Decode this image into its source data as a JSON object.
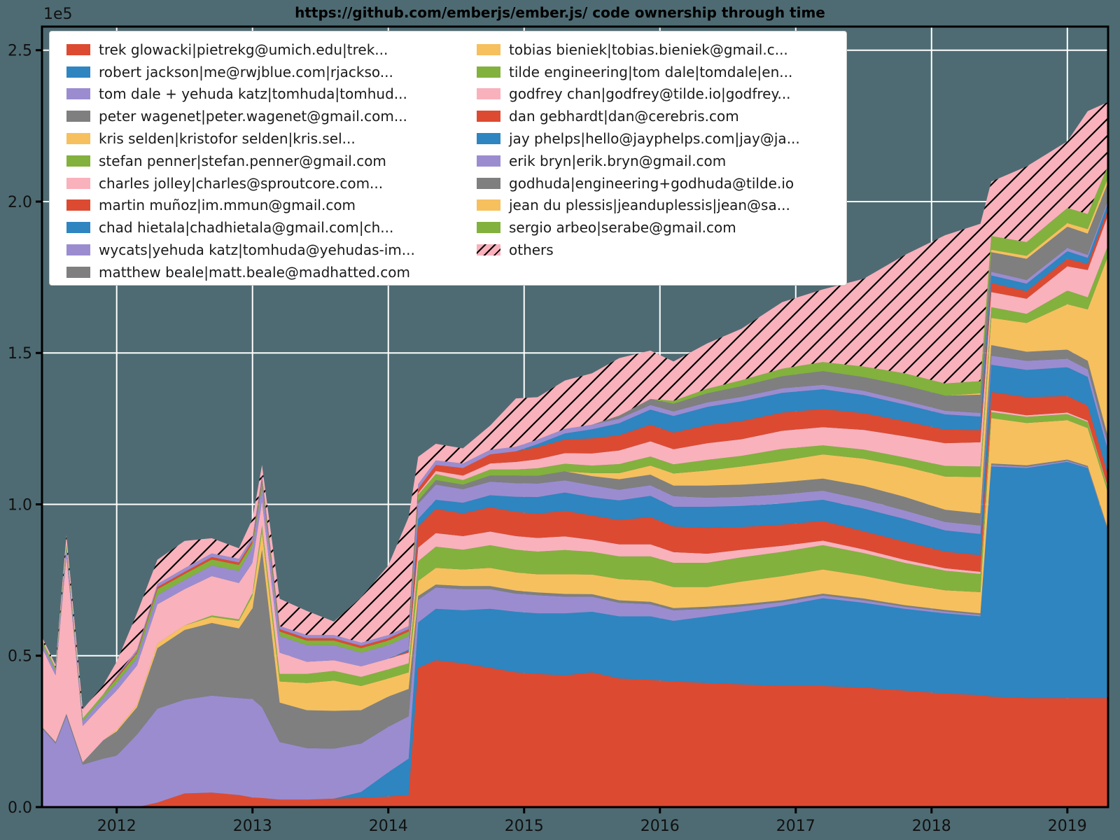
{
  "colors": {
    "figure_bg": "#4e6b73",
    "grid": "#ffffff",
    "spine": "#000000",
    "legend_bg": "#ffffff",
    "red": "#dd4a32",
    "blue": "#2e85c0",
    "purple": "#9b8cd0",
    "gray": "#7f7f7f",
    "orange": "#f6c05e",
    "green": "#83b13d",
    "pink": "#f9b1bc"
  },
  "chart_data": {
    "type": "area",
    "stacked": true,
    "title": "https://github.com/emberjs/ember.js/ code ownership through time",
    "y_offset_label": "1e5",
    "grid": true,
    "legend_position": "upper left",
    "xlim": [
      2011.45,
      2019.3
    ],
    "ylim": [
      0,
      257800
    ],
    "xticks": [
      "2012",
      "2013",
      "2014",
      "2015",
      "2016",
      "2017",
      "2018",
      "2019"
    ],
    "xtick_values": [
      2012,
      2013,
      2014,
      2015,
      2016,
      2017,
      2018,
      2019
    ],
    "yticks": [
      "0.0",
      "0.5",
      "1.0",
      "1.5",
      "2.0",
      "2.5"
    ],
    "ytick_values": [
      0,
      50000,
      100000,
      150000,
      200000,
      250000
    ],
    "x": [
      2011.45,
      2011.55,
      2011.63,
      2011.75,
      2011.9,
      2012.0,
      2012.15,
      2012.3,
      2012.5,
      2012.7,
      2012.9,
      2013.0,
      2013.07,
      2013.2,
      2013.4,
      2013.6,
      2013.8,
      2014.0,
      2014.15,
      2014.22,
      2014.35,
      2014.55,
      2014.75,
      2014.94,
      2015.1,
      2015.3,
      2015.5,
      2015.7,
      2015.93,
      2016.1,
      2016.35,
      2016.6,
      2016.9,
      2017.2,
      2017.5,
      2017.8,
      2018.1,
      2018.36,
      2018.44,
      2018.7,
      2019.0,
      2019.15,
      2019.3
    ],
    "series": [
      {
        "key": "trek-glowacki",
        "label": "trek glowacki|pietrekg@umich.edu|trek...",
        "color": "red",
        "hatch": false,
        "values": [
          0,
          0,
          0,
          0,
          0,
          0,
          0,
          1500,
          4500,
          4800,
          4000,
          3200,
          3000,
          2500,
          2500,
          2800,
          3000,
          3500,
          4000,
          46000,
          48500,
          47500,
          46000,
          44500,
          44000,
          43500,
          44500,
          42500,
          42000,
          41500,
          41000,
          40500,
          40000,
          40000,
          39500,
          38500,
          37500,
          37000,
          36500,
          36000,
          36000,
          36000,
          36000
        ]
      },
      {
        "key": "robert-jackson",
        "label": "robert jackson|me@rwjblue.com|rjackso...",
        "color": "blue",
        "hatch": false,
        "values": [
          0,
          0,
          0,
          0,
          0,
          0,
          0,
          0,
          0,
          0,
          0,
          0,
          0,
          0,
          0,
          0,
          2000,
          8000,
          12000,
          15000,
          17000,
          17500,
          19500,
          20000,
          20000,
          20500,
          20000,
          20500,
          21000,
          20000,
          22000,
          24000,
          26500,
          29000,
          28000,
          27000,
          26500,
          26000,
          76000,
          76000,
          78000,
          76000,
          55000
        ]
      },
      {
        "key": "tom-dale-yehuda-katz",
        "label": "tom dale + yehuda katz|tomhuda|tomhud...",
        "color": "purple",
        "hatch": false,
        "values": [
          26000,
          21000,
          30000,
          14000,
          16000,
          17000,
          24000,
          31000,
          31000,
          32000,
          32000,
          32500,
          30000,
          19000,
          17000,
          16500,
          16000,
          15000,
          14000,
          7500,
          7000,
          7000,
          6500,
          6000,
          6000,
          5500,
          5000,
          4500,
          4000,
          3500,
          2500,
          1800,
          1200,
          900,
          800,
          700,
          600,
          500,
          500,
          400,
          400,
          300,
          300
        ]
      },
      {
        "key": "peter-wagenet",
        "label": "peter wagenet|peter.wagenet@gmail.com...",
        "color": "gray",
        "hatch": false,
        "values": [
          500,
          500,
          800,
          800,
          6000,
          8000,
          9000,
          20000,
          23000,
          24000,
          23000,
          30000,
          52000,
          13000,
          12500,
          12500,
          11000,
          10000,
          9000,
          1200,
          1000,
          1000,
          1000,
          1000,
          900,
          900,
          800,
          800,
          800,
          700,
          700,
          700,
          600,
          600,
          600,
          500,
          500,
          500,
          500,
          500,
          400,
          400,
          400
        ]
      },
      {
        "key": "kris-selden",
        "label": "kris selden|kristofor selden|kris.sel...",
        "color": "orange",
        "hatch": false,
        "values": [
          0,
          0,
          0,
          0,
          0,
          500,
          800,
          1500,
          1500,
          2000,
          2500,
          4000,
          6000,
          7000,
          9000,
          10000,
          8000,
          6000,
          5500,
          5000,
          5500,
          5500,
          6000,
          6000,
          6000,
          6500,
          6500,
          7000,
          7000,
          7000,
          6500,
          7500,
          8000,
          8000,
          7500,
          7000,
          6500,
          7000,
          15000,
          14000,
          13000,
          12500,
          12000
        ]
      },
      {
        "key": "stefan-penner",
        "label": "stefan penner|stefan.penner@gmail.com",
        "color": "green",
        "hatch": false,
        "values": [
          0,
          0,
          0,
          0,
          0,
          0,
          0,
          0,
          0,
          500,
          500,
          1000,
          2000,
          2500,
          3000,
          3200,
          3000,
          3000,
          3000,
          6500,
          7000,
          6500,
          7500,
          7500,
          7500,
          8000,
          7500,
          7500,
          8000,
          8000,
          8000,
          8000,
          8000,
          8000,
          7500,
          7000,
          6500,
          6000,
          2000,
          2000,
          2000,
          2000,
          1500
        ]
      },
      {
        "key": "charles-jolley",
        "label": "charles jolley|charles@sproutcore.com...",
        "color": "pink",
        "hatch": false,
        "values": [
          26000,
          22000,
          52000,
          12000,
          12000,
          13000,
          13000,
          13000,
          12000,
          13000,
          12000,
          10000,
          8000,
          7000,
          4000,
          3500,
          3500,
          3500,
          3500,
          4500,
          4500,
          4500,
          4500,
          4500,
          4500,
          4500,
          4000,
          4000,
          4000,
          3500,
          3000,
          2500,
          2000,
          1500,
          1200,
          1000,
          800,
          700,
          600,
          500,
          500,
          400,
          400
        ]
      },
      {
        "key": "martin-munoz",
        "label": "martin muñoz|im.mmun@gmail.com",
        "color": "red",
        "hatch": false,
        "values": [
          0,
          0,
          0,
          0,
          0,
          0,
          0,
          0,
          0,
          0,
          0,
          0,
          0,
          0,
          0,
          0,
          0,
          0,
          500,
          7000,
          8000,
          7500,
          8000,
          8000,
          8000,
          8500,
          8000,
          8000,
          9000,
          8500,
          8500,
          7500,
          7000,
          6500,
          6000,
          6000,
          5500,
          5500,
          6000,
          6000,
          5500,
          5000,
          4000
        ]
      },
      {
        "key": "chad-hietala",
        "label": "chad hietala|chadhietala@gmail.com|ch...",
        "color": "blue",
        "hatch": false,
        "values": [
          0,
          0,
          0,
          0,
          0,
          0,
          0,
          0,
          0,
          0,
          0,
          0,
          0,
          0,
          0,
          0,
          0,
          0,
          500,
          2500,
          3000,
          3500,
          4000,
          5000,
          5500,
          6000,
          6000,
          6500,
          7000,
          6500,
          7000,
          7000,
          7000,
          7000,
          7500,
          7500,
          7000,
          7000,
          9000,
          9000,
          9500,
          9500,
          8000
        ]
      },
      {
        "key": "wycats",
        "label": "wycats|yehuda katz|tomhuda@yehudas-im...",
        "color": "purple",
        "hatch": false,
        "values": [
          1500,
          1500,
          2500,
          1500,
          2000,
          2500,
          2500,
          3000,
          3000,
          3500,
          4000,
          5000,
          5000,
          5500,
          5500,
          5000,
          4500,
          4500,
          4500,
          5000,
          5000,
          4500,
          4500,
          4500,
          4500,
          4000,
          4000,
          3500,
          3500,
          3500,
          3000,
          3000,
          3000,
          3000,
          3000,
          2800,
          2800,
          2800,
          3000,
          3000,
          2800,
          2500,
          2000
        ]
      },
      {
        "key": "matthew-beale",
        "label": "matthew beale|matt.beale@madhatted.com",
        "color": "gray",
        "hatch": false,
        "values": [
          0,
          0,
          0,
          0,
          0,
          0,
          0,
          0,
          0,
          0,
          0,
          0,
          0,
          0,
          0,
          0,
          0,
          0,
          0,
          1000,
          1500,
          1500,
          2000,
          2500,
          2500,
          3000,
          3000,
          3500,
          3500,
          3500,
          4000,
          4000,
          4000,
          4000,
          4500,
          4500,
          4000,
          4000,
          3500,
          3000,
          3000,
          2800,
          2500
        ]
      },
      {
        "key": "tobias-bieniek",
        "label": "tobias bieniek|tobias.bieniek@gmail.c...",
        "color": "orange",
        "hatch": false,
        "values": [
          0,
          0,
          0,
          0,
          0,
          0,
          0,
          0,
          0,
          0,
          0,
          0,
          0,
          0,
          0,
          0,
          0,
          0,
          0,
          0,
          0,
          0,
          0,
          0,
          0,
          0,
          1000,
          2000,
          3000,
          4000,
          5000,
          6000,
          7000,
          8000,
          9000,
          10000,
          11000,
          12000,
          9000,
          9500,
          15000,
          17000,
          60000
        ]
      },
      {
        "key": "tilde-engineering",
        "label": "tilde engineering|tom dale|tomdale|en...",
        "color": "green",
        "hatch": false,
        "values": [
          1200,
          1000,
          1500,
          1000,
          1200,
          1500,
          1500,
          2000,
          2000,
          2000,
          2000,
          1500,
          1500,
          1500,
          1500,
          1500,
          1500,
          1500,
          1500,
          2000,
          2000,
          1500,
          2000,
          2000,
          2500,
          2500,
          2500,
          3000,
          3000,
          3000,
          3500,
          3500,
          4000,
          3000,
          3000,
          3000,
          3500,
          3500,
          3500,
          3000,
          4500,
          4000,
          3500
        ]
      },
      {
        "key": "godfrey-chan",
        "label": "godfrey chan|godfrey@tilde.io|godfrey...",
        "color": "pink",
        "hatch": false,
        "values": [
          0,
          0,
          0,
          0,
          0,
          0,
          0,
          0,
          0,
          0,
          0,
          0,
          0,
          0,
          0,
          0,
          0,
          0,
          0,
          500,
          1000,
          1500,
          2000,
          2500,
          3000,
          3500,
          4000,
          4500,
          5000,
          5000,
          5500,
          5500,
          6000,
          6000,
          6500,
          7000,
          7500,
          8000,
          5000,
          5000,
          8000,
          9000,
          10000
        ]
      },
      {
        "key": "dan-gebhardt",
        "label": "dan gebhardt|dan@cerebris.com",
        "color": "red",
        "hatch": false,
        "values": [
          0,
          0,
          0,
          0,
          0,
          500,
          500,
          700,
          700,
          800,
          800,
          800,
          800,
          800,
          800,
          800,
          800,
          800,
          800,
          1500,
          2000,
          2500,
          3000,
          3500,
          4000,
          4500,
          5000,
          5000,
          5500,
          5500,
          6000,
          6000,
          6000,
          6000,
          5500,
          5000,
          4500,
          4000,
          3000,
          2500,
          2500,
          2000,
          2000
        ]
      },
      {
        "key": "jay-phelps",
        "label": "jay phelps|hello@jayphelps.com|jay@ja...",
        "color": "blue",
        "hatch": false,
        "values": [
          0,
          0,
          0,
          0,
          0,
          0,
          0,
          0,
          0,
          0,
          0,
          0,
          0,
          0,
          0,
          0,
          0,
          0,
          0,
          0,
          0,
          0,
          0,
          0,
          1000,
          2000,
          3000,
          4000,
          5000,
          5500,
          6000,
          6500,
          6500,
          6500,
          6000,
          5500,
          5000,
          4500,
          2500,
          2500,
          2500,
          2000,
          2000
        ]
      },
      {
        "key": "erik-bryn",
        "label": "erik bryn|erik.bryn@gmail.com",
        "color": "purple",
        "hatch": false,
        "values": [
          0,
          0,
          0,
          0,
          0,
          500,
          800,
          1000,
          1200,
          1200,
          1200,
          1200,
          1200,
          1000,
          1000,
          1000,
          1000,
          1000,
          1000,
          1500,
          1500,
          1500,
          1500,
          1500,
          1500,
          1500,
          1500,
          1500,
          1500,
          1500,
          1500,
          1500,
          1500,
          1500,
          1400,
          1300,
          1200,
          1200,
          1200,
          1200,
          1100,
          1000,
          800
        ]
      },
      {
        "key": "godhuda",
        "label": "godhuda|engineering+godhuda@tilde.io",
        "color": "gray",
        "hatch": false,
        "values": [
          0,
          0,
          0,
          0,
          0,
          0,
          0,
          0,
          0,
          0,
          0,
          0,
          0,
          0,
          0,
          0,
          0,
          0,
          0,
          0,
          0,
          0,
          0,
          0,
          0,
          0,
          0,
          1000,
          2000,
          2500,
          3000,
          3500,
          4000,
          4500,
          4500,
          5000,
          5000,
          6000,
          6500,
          7000,
          7000,
          7000,
          6000
        ]
      },
      {
        "key": "jean-du-plessis",
        "label": "jean du plessis|jeanduplessis|jean@sa...",
        "color": "orange",
        "hatch": false,
        "values": [
          0,
          0,
          0,
          0,
          0,
          0,
          0,
          0,
          0,
          0,
          0,
          0,
          0,
          0,
          0,
          0,
          0,
          0,
          0,
          0,
          0,
          0,
          0,
          0,
          0,
          0,
          0,
          0,
          0,
          0,
          0,
          0,
          0,
          0,
          0,
          0,
          0,
          500,
          800,
          1000,
          1200,
          1500,
          1500
        ]
      },
      {
        "key": "sergio-arbeo",
        "label": "sergio arbeo|serabe@gmail.com",
        "color": "green",
        "hatch": false,
        "values": [
          0,
          0,
          0,
          0,
          0,
          0,
          0,
          0,
          0,
          0,
          0,
          0,
          0,
          0,
          0,
          0,
          0,
          0,
          0,
          0,
          0,
          0,
          0,
          0,
          0,
          0,
          0,
          0,
          0,
          1000,
          1500,
          2000,
          2500,
          3000,
          3500,
          4000,
          4000,
          4000,
          4500,
          4500,
          5000,
          5000,
          4000
        ]
      },
      {
        "key": "others",
        "label": "others",
        "color": "pink",
        "hatch": true,
        "values": [
          1000,
          1000,
          3000,
          3000,
          3000,
          4500,
          12000,
          8000,
          9000,
          5000,
          3500,
          6000,
          3500,
          9000,
          8000,
          4500,
          15000,
          23000,
          36000,
          9000,
          5500,
          5000,
          8000,
          16000,
          14000,
          16000,
          17000,
          19000,
          16000,
          13000,
          15000,
          17000,
          22000,
          24000,
          29000,
          39000,
          49000,
          52000,
          18000,
          25000,
          22000,
          34000,
          21000
        ]
      }
    ]
  },
  "legend": {
    "columns": [
      [
        0,
        1,
        2,
        3,
        4,
        5,
        6,
        7,
        8,
        9,
        10
      ],
      [
        11,
        12,
        13,
        14,
        15,
        16,
        17,
        18,
        19,
        20
      ]
    ]
  }
}
